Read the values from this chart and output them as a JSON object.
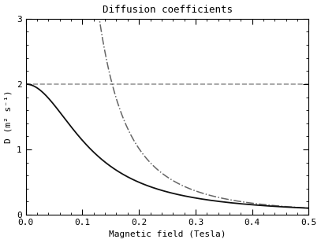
{
  "title": "Diffusion coefficients",
  "xlabel": "Magnetic field (Tesla)",
  "ylabel": "D (m² s⁻¹)",
  "xlim": [
    0.0,
    0.5
  ],
  "ylim": [
    0.0,
    3.0
  ],
  "xticks": [
    0.0,
    0.1,
    0.2,
    0.3,
    0.4,
    0.5
  ],
  "yticks": [
    0,
    1,
    2,
    3
  ],
  "hline_y": 2.0,
  "hline_color": "#999999",
  "hline_style": "--",
  "solid_color": "#111111",
  "dashdot_color": "#666666",
  "bg_color": "#ffffff",
  "D0_solid": 2.0,
  "B0_solid": 0.1,
  "A_dashdot": 0.045,
  "n_dashdot": 1.5,
  "B0_dashdot": 0.1
}
